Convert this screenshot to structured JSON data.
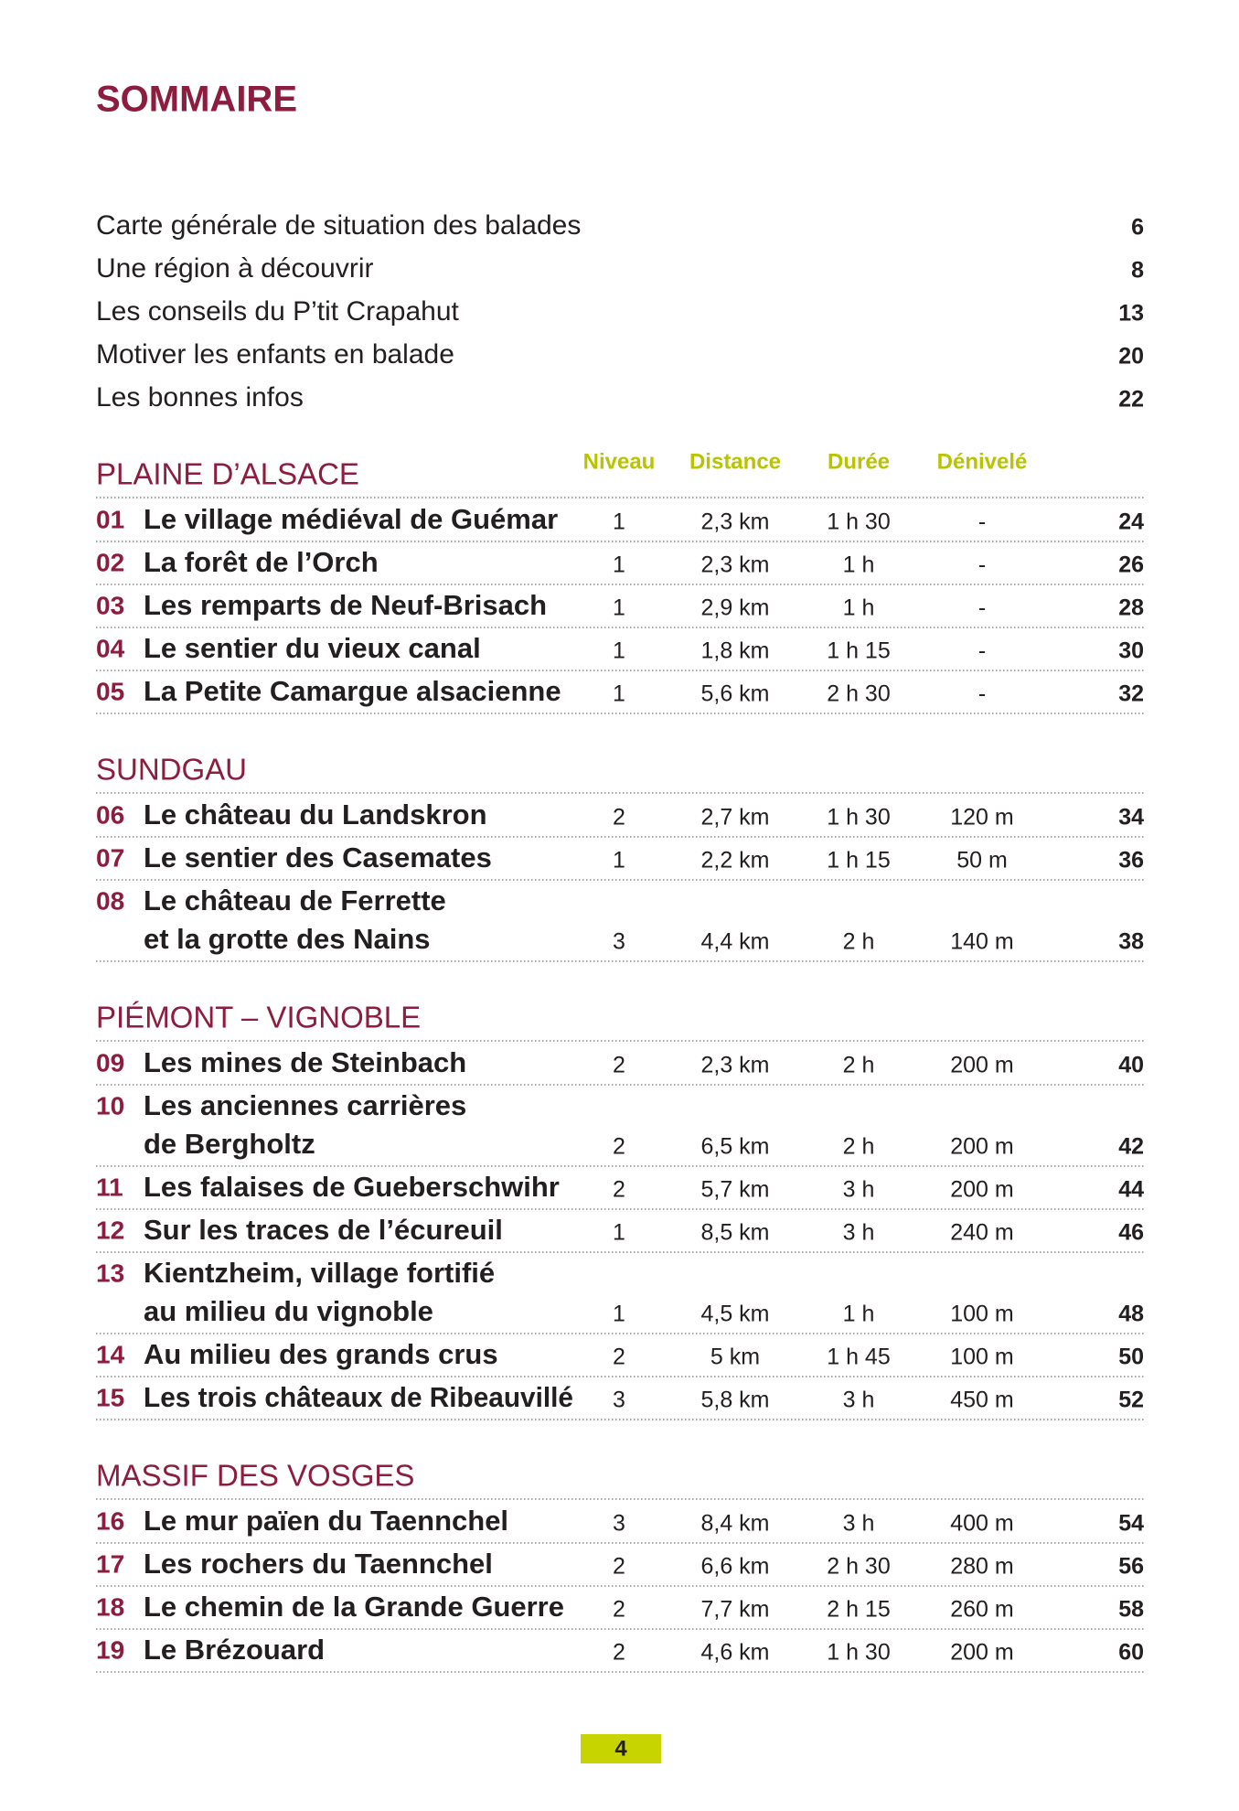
{
  "title": "SOMMAIRE",
  "intro": [
    {
      "label": "Carte générale de situation des balades",
      "page": 6
    },
    {
      "label": "Une région à découvrir",
      "page": 8
    },
    {
      "label": "Les conseils du P’tit Crapahut",
      "page": 13
    },
    {
      "label": "Motiver les enfants en balade",
      "page": 20
    },
    {
      "label": "Les bonnes infos",
      "page": 22
    }
  ],
  "columns": [
    "Niveau",
    "Distance",
    "Durée",
    "Dénivelé"
  ],
  "sections": [
    {
      "title": "PLAINE D’ALSACE",
      "walks": [
        {
          "num": "01",
          "lines": [
            "Le village médiéval de Guémar"
          ],
          "niveau": 1,
          "distance": "2,3 km",
          "duree": "1 h 30",
          "denivele": "-",
          "page": 24
        },
        {
          "num": "02",
          "lines": [
            "La forêt de l’Orch"
          ],
          "niveau": 1,
          "distance": "2,3 km",
          "duree": "1 h",
          "denivele": "-",
          "page": 26
        },
        {
          "num": "03",
          "lines": [
            "Les remparts de Neuf-Brisach"
          ],
          "niveau": 1,
          "distance": "2,9 km",
          "duree": "1 h",
          "denivele": "-",
          "page": 28
        },
        {
          "num": "04",
          "lines": [
            "Le sentier du vieux canal"
          ],
          "niveau": 1,
          "distance": "1,8 km",
          "duree": "1 h 15",
          "denivele": "-",
          "page": 30
        },
        {
          "num": "05",
          "lines": [
            "La Petite Camargue alsacienne"
          ],
          "niveau": 1,
          "distance": "5,6 km",
          "duree": "2 h 30",
          "denivele": "-",
          "page": 32
        }
      ]
    },
    {
      "title": "SUNDGAU",
      "walks": [
        {
          "num": "06",
          "lines": [
            "Le château du Landskron"
          ],
          "niveau": 2,
          "distance": "2,7 km",
          "duree": "1 h 30",
          "denivele": "120 m",
          "page": 34
        },
        {
          "num": "07",
          "lines": [
            "Le sentier des Casemates"
          ],
          "niveau": 1,
          "distance": "2,2 km",
          "duree": "1 h 15",
          "denivele": "50 m",
          "page": 36
        },
        {
          "num": "08",
          "lines": [
            "Le château de Ferrette",
            "et la grotte des Nains"
          ],
          "niveau": 3,
          "distance": "4,4 km",
          "duree": "2 h",
          "denivele": "140 m",
          "page": 38
        }
      ]
    },
    {
      "title": "PIÉMONT – VIGNOBLE",
      "walks": [
        {
          "num": "09",
          "lines": [
            "Les mines de Steinbach"
          ],
          "niveau": 2,
          "distance": "2,3 km",
          "duree": "2 h",
          "denivele": "200 m",
          "page": 40
        },
        {
          "num": "10",
          "lines": [
            "Les anciennes carrières",
            "de Bergholtz"
          ],
          "niveau": 2,
          "distance": "6,5 km",
          "duree": "2 h",
          "denivele": "200 m",
          "page": 42
        },
        {
          "num": "11",
          "lines": [
            "Les falaises de Gueberschwihr"
          ],
          "niveau": 2,
          "distance": "5,7 km",
          "duree": "3 h",
          "denivele": "200 m",
          "page": 44
        },
        {
          "num": "12",
          "lines": [
            "Sur les traces de l’écureuil"
          ],
          "niveau": 1,
          "distance": "8,5 km",
          "duree": "3 h",
          "denivele": "240 m",
          "page": 46
        },
        {
          "num": "13",
          "lines": [
            "Kientzheim, village fortifié",
            "au milieu du vignoble"
          ],
          "niveau": 1,
          "distance": "4,5 km",
          "duree": "1 h",
          "denivele": "100 m",
          "page": 48
        },
        {
          "num": "14",
          "lines": [
            "Au milieu des grands crus"
          ],
          "niveau": 2,
          "distance": "5 km",
          "duree": "1 h 45",
          "denivele": "100 m",
          "page": 50
        },
        {
          "num": "15",
          "lines": [
            "Les trois châteaux de Ribeauvillé"
          ],
          "niveau": 3,
          "distance": "5,8 km",
          "duree": "3 h",
          "denivele": "450 m",
          "page": 52
        }
      ]
    },
    {
      "title": "MASSIF DES VOSGES",
      "walks": [
        {
          "num": "16",
          "lines": [
            "Le mur païen du Taennchel"
          ],
          "niveau": 3,
          "distance": "8,4 km",
          "duree": "3 h",
          "denivele": "400 m",
          "page": 54
        },
        {
          "num": "17",
          "lines": [
            "Les rochers du Taennchel"
          ],
          "niveau": 2,
          "distance": "6,6 km",
          "duree": "2 h 30",
          "denivele": "280 m",
          "page": 56
        },
        {
          "num": "18",
          "lines": [
            "Le chemin de la Grande Guerre"
          ],
          "niveau": 2,
          "distance": "7,7 km",
          "duree": "2 h 15",
          "denivele": "260 m",
          "page": 58
        },
        {
          "num": "19",
          "lines": [
            "Le Brézouard"
          ],
          "niveau": 2,
          "distance": "4,6 km",
          "duree": "1 h 30",
          "denivele": "200 m",
          "page": 60
        }
      ]
    }
  ],
  "page_number": "4"
}
